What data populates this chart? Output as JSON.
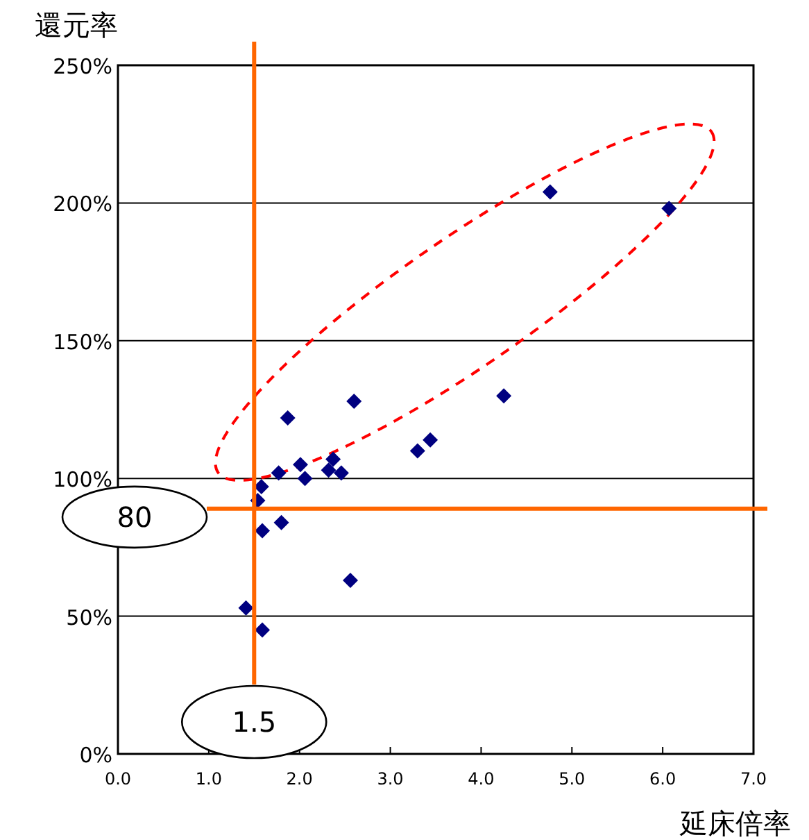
{
  "chart_data": {
    "type": "scatter",
    "xlabel": "延床倍率",
    "ylabel": "還元率",
    "x": [
      4.76,
      6.07,
      4.25,
      2.6,
      3.44,
      3.3,
      1.87,
      2.37,
      2.32,
      2.46,
      2.01,
      2.06,
      1.77,
      1.58,
      1.54,
      1.8,
      1.59,
      2.56,
      1.41,
      1.59
    ],
    "values": [
      204,
      198,
      130,
      128,
      114,
      110,
      122,
      107,
      103,
      102,
      105,
      100,
      102,
      97,
      92,
      84,
      81,
      63,
      53,
      45
    ],
    "color": "#000080",
    "marker": "diamond",
    "xlim": [
      0,
      7
    ],
    "xticks": [
      {
        "value": 0,
        "label": "0.0"
      },
      {
        "value": 1,
        "label": "1.0"
      },
      {
        "value": 2,
        "label": "2.0"
      },
      {
        "value": 3,
        "label": "3.0"
      },
      {
        "value": 4,
        "label": "4.0"
      },
      {
        "value": 5,
        "label": "5.0"
      },
      {
        "value": 6,
        "label": "6.0"
      },
      {
        "value": 7,
        "label": "7.0"
      }
    ],
    "ylim": [
      0,
      250
    ],
    "yticks": [
      {
        "value": 0,
        "label": "0%"
      },
      {
        "value": 50,
        "label": "50%"
      },
      {
        "value": 100,
        "label": "100%"
      },
      {
        "value": 150,
        "label": "150%"
      },
      {
        "value": 200,
        "label": "200%"
      },
      {
        "value": 250,
        "label": "250%"
      }
    ],
    "grid": "y",
    "ref_lines": [
      {
        "axis": "x",
        "value": 1.5,
        "color": "#ff6600"
      },
      {
        "axis": "y",
        "value": 89,
        "color": "#ff6600"
      }
    ],
    "annotations": [
      "80",
      "1.5"
    ]
  }
}
